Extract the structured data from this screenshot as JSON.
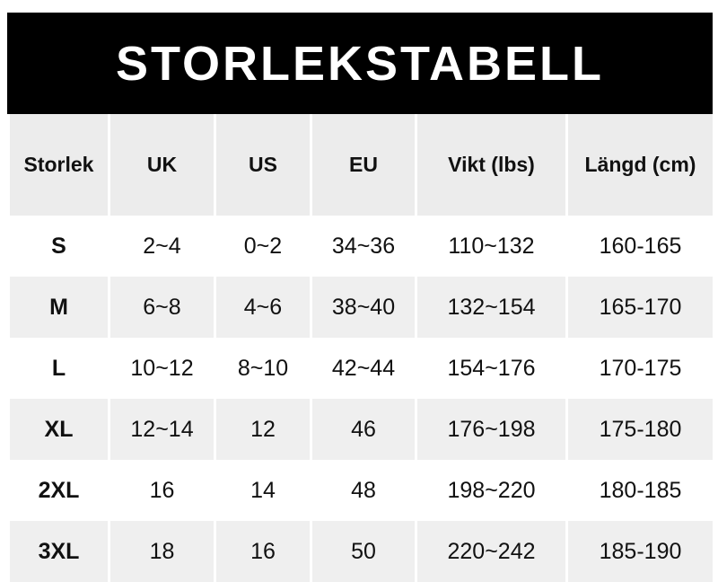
{
  "header": {
    "title": "STORLEKSTABELL"
  },
  "table": {
    "columns": [
      "Storlek",
      "UK",
      "US",
      "EU",
      "Vikt (lbs)",
      "Längd (cm)"
    ],
    "rows": [
      [
        "S",
        "2~4",
        "0~2",
        "34~36",
        "110~132",
        "160-165"
      ],
      [
        "M",
        "6~8",
        "4~6",
        "38~40",
        "132~154",
        "165-170"
      ],
      [
        "L",
        "10~12",
        "8~10",
        "42~44",
        "154~176",
        "170-175"
      ],
      [
        "XL",
        "12~14",
        "12",
        "46",
        "176~198",
        "175-180"
      ],
      [
        "2XL",
        "16",
        "14",
        "48",
        "198~220",
        "180-185"
      ],
      [
        "3XL",
        "18",
        "16",
        "50",
        "220~242",
        "185-190"
      ]
    ]
  }
}
